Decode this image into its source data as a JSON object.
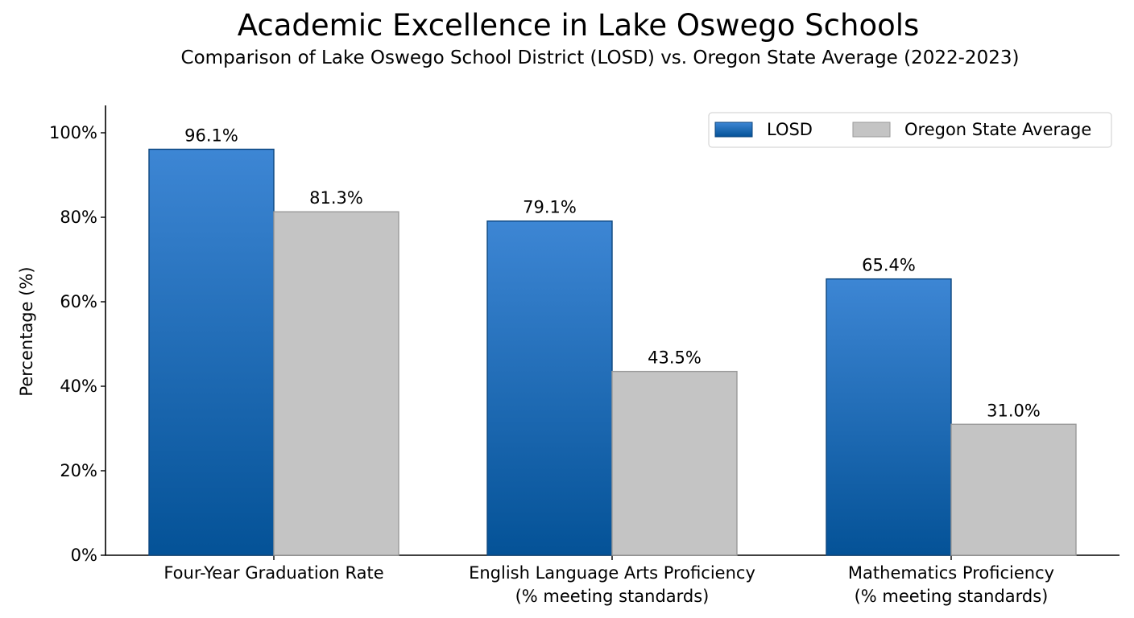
{
  "chart_data": {
    "type": "bar",
    "title": "Academic Excellence in Lake Oswego Schools",
    "subtitle": "Comparison of Lake Oswego School District (LOSD) vs. Oregon State Average (2022-2023)",
    "xlabel": "",
    "ylabel": "Percentage (%)",
    "ylim": [
      0,
      106
    ],
    "yticks": [
      0,
      20,
      40,
      60,
      80,
      100
    ],
    "ytick_labels": [
      "0%",
      "20%",
      "40%",
      "60%",
      "80%",
      "100%"
    ],
    "categories": [
      [
        "Four-Year Graduation Rate"
      ],
      [
        "English Language Arts Proficiency",
        "(% meeting standards)"
      ],
      [
        "Mathematics Proficiency",
        "(% meeting standards)"
      ]
    ],
    "series": [
      {
        "name": "LOSD",
        "values": [
          96.1,
          79.1,
          65.4
        ],
        "labels": [
          "96.1%",
          "79.1%",
          "65.4%"
        ],
        "color_top": "#3d86d4",
        "color_bottom": "#045297",
        "edge_color": "#0d467e"
      },
      {
        "name": "Oregon State Average",
        "values": [
          81.3,
          43.5,
          31.0
        ],
        "labels": [
          "81.3%",
          "43.5%",
          "31.0%"
        ],
        "color": "#c4c4c4",
        "edge_color": "#9a9a9a"
      }
    ],
    "legend": "top-right",
    "grid": false
  }
}
